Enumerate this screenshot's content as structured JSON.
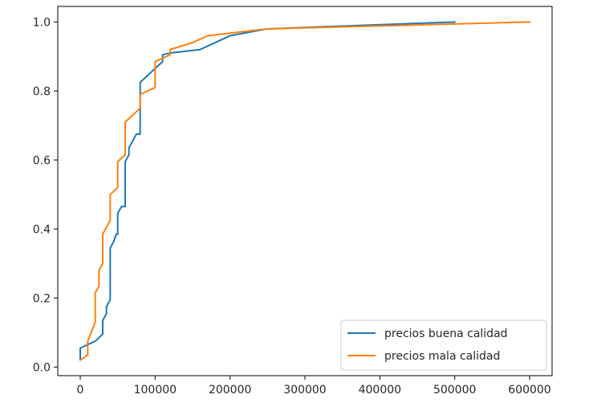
{
  "chart_data": {
    "type": "line",
    "title": "",
    "xlabel": "",
    "ylabel": "",
    "xlim": [
      -30000,
      630000
    ],
    "ylim": [
      -0.025,
      1.045
    ],
    "grid": false,
    "legend_position": "lower-right",
    "xticks": [
      0,
      100000,
      200000,
      300000,
      400000,
      500000,
      600000
    ],
    "xtick_labels": [
      "0",
      "100000",
      "200000",
      "300000",
      "400000",
      "500000",
      "600000"
    ],
    "yticks": [
      0.0,
      0.2,
      0.4,
      0.6,
      0.8,
      1.0
    ],
    "ytick_labels": [
      "0.0",
      "0.2",
      "0.4",
      "0.6",
      "0.8",
      "1.0"
    ],
    "series": [
      {
        "name": "precios buena calidad",
        "color": "#1f77b4",
        "x": [
          0,
          0,
          10000,
          20000,
          30000,
          30000,
          35000,
          35000,
          40000,
          40000,
          45000,
          48000,
          50000,
          50000,
          55000,
          60000,
          60000,
          65000,
          65000,
          70000,
          75000,
          80000,
          80000,
          90000,
          100000,
          110000,
          110000,
          120000,
          160000,
          200000,
          250000,
          500000
        ],
        "y": [
          0.025,
          0.055,
          0.065,
          0.075,
          0.095,
          0.135,
          0.155,
          0.175,
          0.195,
          0.345,
          0.365,
          0.385,
          0.385,
          0.445,
          0.465,
          0.465,
          0.595,
          0.615,
          0.635,
          0.655,
          0.675,
          0.675,
          0.825,
          0.845,
          0.865,
          0.885,
          0.905,
          0.91,
          0.92,
          0.96,
          0.98,
          1.0
        ]
      },
      {
        "name": "precios mala calidad",
        "color": "#ff7f0e",
        "x": [
          0,
          10000,
          10000,
          20000,
          20000,
          25000,
          25000,
          30000,
          30000,
          40000,
          40000,
          50000,
          50000,
          55000,
          60000,
          60000,
          80000,
          80000,
          100000,
          100000,
          110000,
          120000,
          120000,
          150000,
          170000,
          250000,
          600000
        ],
        "y": [
          0.02,
          0.035,
          0.075,
          0.13,
          0.215,
          0.235,
          0.28,
          0.3,
          0.385,
          0.425,
          0.5,
          0.52,
          0.595,
          0.605,
          0.615,
          0.71,
          0.75,
          0.79,
          0.81,
          0.885,
          0.895,
          0.905,
          0.92,
          0.94,
          0.96,
          0.98,
          1.0
        ]
      }
    ]
  }
}
